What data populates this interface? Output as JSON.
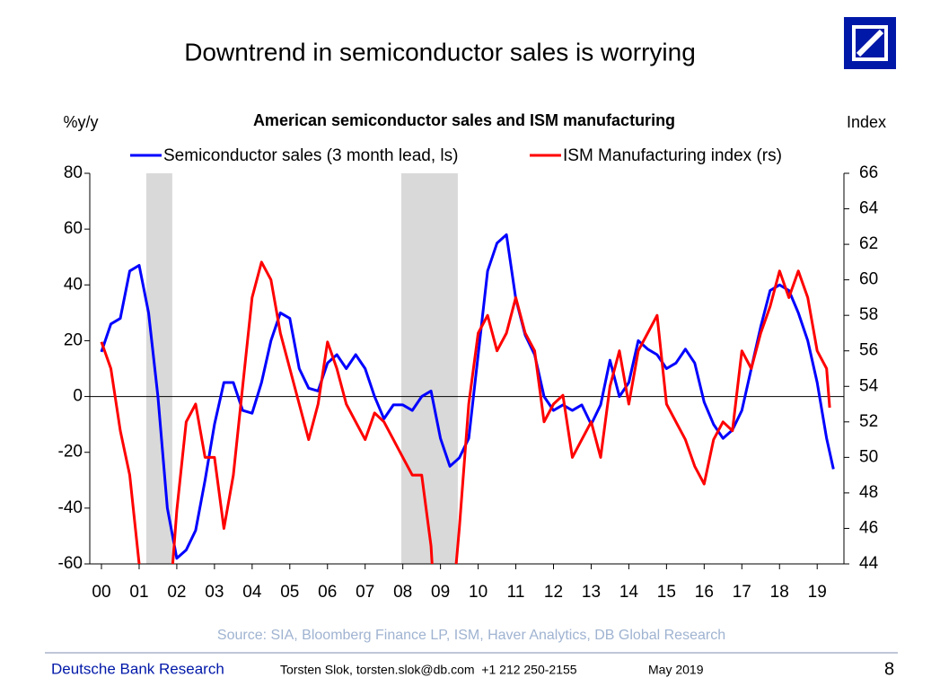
{
  "slide": {
    "title": "Downtrend in semiconductor sales is worrying",
    "source": "Source: SIA, Bloomberg Finance LP, ISM, Haver Analytics, DB Global Research",
    "brand": "Deutsche Bank Research",
    "author": "Torsten Slok, torsten.slok@db.com  +1 212 250-2155",
    "date": "May 2019",
    "page": "8"
  },
  "chart_data": {
    "type": "line",
    "title": "American semiconductor sales and ISM manufacturing",
    "ylabel": "%y/y",
    "y2label": "Index",
    "xlim": [
      1999.69,
      2019.71
    ],
    "xticks": [
      {
        "value": 2000,
        "label": "00"
      },
      {
        "value": 2001,
        "label": "01"
      },
      {
        "value": 2002,
        "label": "02"
      },
      {
        "value": 2003,
        "label": "03"
      },
      {
        "value": 2004,
        "label": "04"
      },
      {
        "value": 2005,
        "label": "05"
      },
      {
        "value": 2006,
        "label": "06"
      },
      {
        "value": 2007,
        "label": "07"
      },
      {
        "value": 2008,
        "label": "08"
      },
      {
        "value": 2009,
        "label": "09"
      },
      {
        "value": 2010,
        "label": "10"
      },
      {
        "value": 2011,
        "label": "11"
      },
      {
        "value": 2012,
        "label": "12"
      },
      {
        "value": 2013,
        "label": "13"
      },
      {
        "value": 2014,
        "label": "14"
      },
      {
        "value": 2015,
        "label": "15"
      },
      {
        "value": 2016,
        "label": "16"
      },
      {
        "value": 2017,
        "label": "17"
      },
      {
        "value": 2018,
        "label": "18"
      },
      {
        "value": 2019,
        "label": "19"
      }
    ],
    "ylim": [
      -60,
      80
    ],
    "yticks": [
      -60,
      -40,
      -20,
      0,
      20,
      40,
      60,
      80
    ],
    "y2lim": [
      44,
      66
    ],
    "y2ticks": [
      44,
      46,
      48,
      50,
      52,
      54,
      56,
      58,
      60,
      62,
      64,
      66
    ],
    "shaded_periods": [
      [
        2001.19,
        2001.88
      ],
      [
        2007.96,
        2009.46
      ]
    ],
    "shade_color": "#d9d9d9",
    "series": [
      {
        "name": "Semiconductor sales (3 month lead, ls)",
        "color": "#0000ff",
        "x": [
          2000,
          2000.25,
          2000.5,
          2000.75,
          2001,
          2001.25,
          2001.5,
          2001.75,
          2002,
          2002.25,
          2002.5,
          2002.75,
          2003,
          2003.25,
          2003.5,
          2003.75,
          2004,
          2004.25,
          2004.5,
          2004.75,
          2005,
          2005.25,
          2005.5,
          2005.75,
          2006,
          2006.25,
          2006.5,
          2006.75,
          2007,
          2007.25,
          2007.5,
          2007.75,
          2008,
          2008.25,
          2008.5,
          2008.75,
          2009,
          2009.25,
          2009.5,
          2009.75,
          2010,
          2010.25,
          2010.5,
          2010.75,
          2011,
          2011.25,
          2011.5,
          2011.75,
          2012,
          2012.25,
          2012.5,
          2012.75,
          2013,
          2013.25,
          2013.5,
          2013.75,
          2014,
          2014.25,
          2014.5,
          2014.75,
          2015,
          2015.25,
          2015.5,
          2015.75,
          2016,
          2016.25,
          2016.5,
          2016.75,
          2017,
          2017.25,
          2017.5,
          2017.75,
          2018,
          2018.25,
          2018.5,
          2018.75,
          2019,
          2019.25,
          2019.43
        ],
        "values": [
          16,
          26,
          28,
          45,
          47,
          30,
          0,
          -40,
          -58,
          -55,
          -48,
          -30,
          -10,
          5,
          5,
          -5,
          -6,
          5,
          20,
          30,
          28,
          10,
          3,
          2,
          12,
          15,
          10,
          15,
          10,
          0,
          -8,
          -3,
          -3,
          -5,
          0,
          2,
          -15,
          -25,
          -22,
          -15,
          15,
          45,
          55,
          58,
          35,
          22,
          15,
          0,
          -5,
          -3,
          -5,
          -3,
          -10,
          -3,
          13,
          0,
          5,
          20,
          17,
          15,
          10,
          12,
          17,
          12,
          -2,
          -10,
          -15,
          -12,
          -5,
          10,
          25,
          38,
          40,
          38,
          30,
          20,
          5,
          -15,
          -26
        ]
      },
      {
        "name": "ISM Manufacturing index (rs)",
        "color": "#ff0000",
        "axis": "y2",
        "x": [
          2000,
          2000.25,
          2000.5,
          2000.75,
          2001,
          2001.25,
          2001.5,
          2001.75,
          2002,
          2002.25,
          2002.5,
          2002.75,
          2003,
          2003.25,
          2003.5,
          2003.75,
          2004,
          2004.25,
          2004.5,
          2004.75,
          2005,
          2005.25,
          2005.5,
          2005.75,
          2006,
          2006.25,
          2006.5,
          2006.75,
          2007,
          2007.25,
          2007.5,
          2007.75,
          2008,
          2008.25,
          2008.5,
          2008.75,
          2009,
          2009.25,
          2009.5,
          2009.75,
          2010,
          2010.25,
          2010.5,
          2010.75,
          2011,
          2011.25,
          2011.5,
          2011.75,
          2012,
          2012.25,
          2012.5,
          2012.75,
          2013,
          2013.25,
          2013.5,
          2013.75,
          2014,
          2014.25,
          2014.5,
          2014.75,
          2015,
          2015.25,
          2015.5,
          2015.75,
          2016,
          2016.25,
          2016.5,
          2016.75,
          2017,
          2017.25,
          2017.5,
          2017.75,
          2018,
          2018.25,
          2018.5,
          2018.75,
          2019,
          2019.25,
          2019.33
        ],
        "values": [
          56.5,
          55,
          51.5,
          49,
          44,
          42.5,
          43,
          40,
          47,
          52,
          53,
          50,
          50,
          46,
          49,
          54,
          59,
          61,
          60,
          57,
          55,
          53,
          51,
          53,
          56.5,
          55,
          53,
          52,
          51,
          52.5,
          52,
          51,
          50,
          49,
          49,
          45,
          36,
          40,
          46,
          53,
          57,
          58,
          56,
          57,
          59,
          57,
          56,
          52,
          53,
          53.5,
          50,
          51,
          52,
          50,
          54,
          56,
          53,
          56,
          57,
          58,
          53,
          52,
          51,
          49.5,
          48.5,
          51,
          52,
          51.5,
          56,
          55,
          57,
          58.5,
          60.5,
          59,
          60.5,
          59,
          56,
          55,
          52.8
        ]
      }
    ]
  }
}
